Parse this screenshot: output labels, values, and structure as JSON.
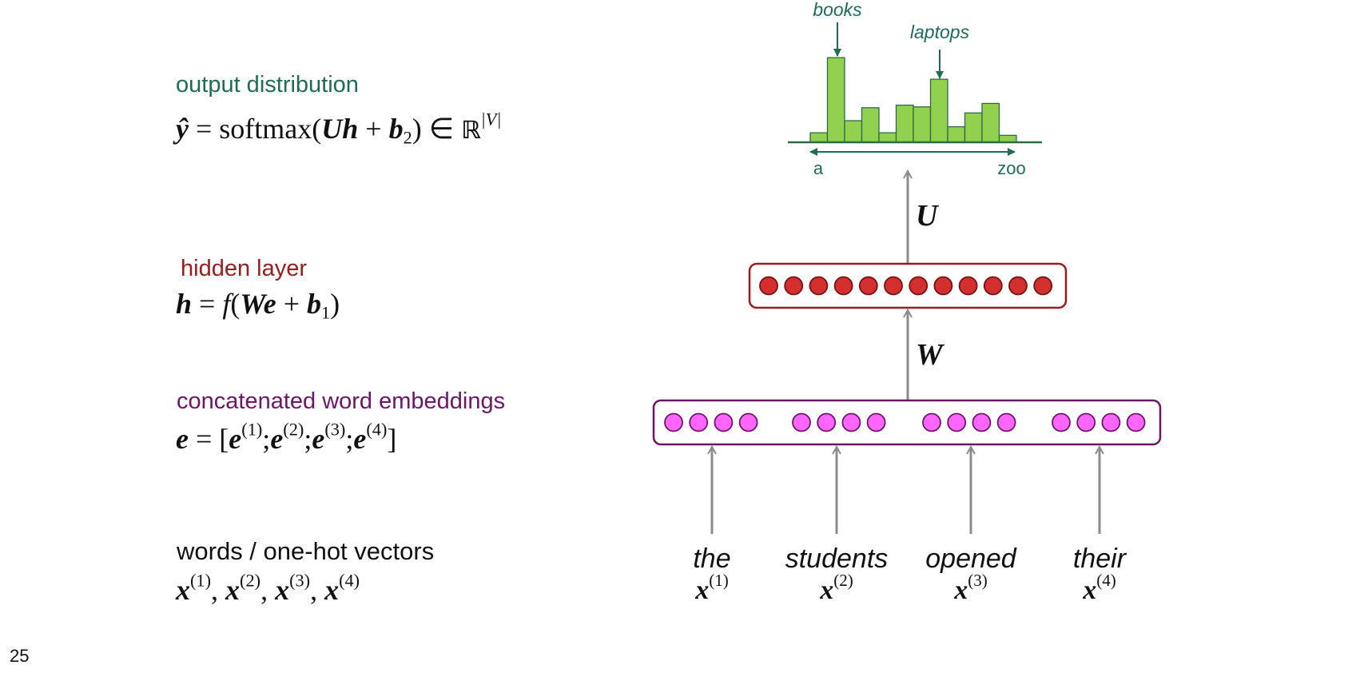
{
  "colors": {
    "output": "#1f6b58",
    "hidden": "#9b1c1c",
    "embedding": "#6d1567",
    "bar_fill": "#92d050",
    "bar_stroke": "#2e6b45",
    "hidden_neuron": "#d32f2f",
    "embed_neuron": "#ff66ff",
    "arrow": "#8c8c8c"
  },
  "left_panel": {
    "output": {
      "label": "output distribution",
      "eq_yhat": "ŷ",
      "eq_mid": " = softmax(",
      "eq_U": "U",
      "eq_h": "h",
      "eq_plus": " + ",
      "eq_b": "b",
      "eq_b_sub": "2",
      "eq_close": ") ∈ ",
      "eq_R": "ℝ",
      "eq_R_sup": "|V|"
    },
    "hidden": {
      "label": "hidden layer",
      "eq_h": "h",
      "eq_mid": " = ",
      "eq_f": "f",
      "eq_open": "(",
      "eq_W": "W",
      "eq_e": "e",
      "eq_plus": " + ",
      "eq_b": "b",
      "eq_b_sub": "1",
      "eq_close": ")"
    },
    "embedding": {
      "label": "concatenated word embeddings",
      "eq_e": "e",
      "eq_mid": " = [",
      "e1": "e",
      "s1": "(1)",
      "e2": "e",
      "s2": "(2)",
      "e3": "e",
      "s3": "(3)",
      "e4": "e",
      "s4": "(4)",
      "sep": ";",
      "eq_close": "]"
    },
    "words": {
      "label": "words / one-hot vectors",
      "x": "x",
      "s1": "(1)",
      "s2": "(2)",
      "s3": "(3)",
      "s4": "(4)",
      "comma": ", "
    }
  },
  "diagram": {
    "histogram": {
      "values": [
        0.11,
        0.25,
        0.4,
        0.11,
        0.43,
        0.41,
        0.73,
        0.18,
        0.34,
        0.45,
        0.08
      ],
      "peak_left": 0.98,
      "annotation_books": "books",
      "annotation_laptops": "laptops",
      "axis_start": "a",
      "axis_end": "zoo"
    },
    "weight_U": "U",
    "weight_W": "W",
    "hidden_neuron_count": 12,
    "embedding_groups": 4,
    "neurons_per_group": 4,
    "inputs": [
      {
        "word": "the",
        "x": "x",
        "sup": "(1)"
      },
      {
        "word": "students",
        "x": "x",
        "sup": "(2)"
      },
      {
        "word": "opened",
        "x": "x",
        "sup": "(3)"
      },
      {
        "word": "their",
        "x": "x",
        "sup": "(4)"
      }
    ]
  },
  "page_number": "25"
}
